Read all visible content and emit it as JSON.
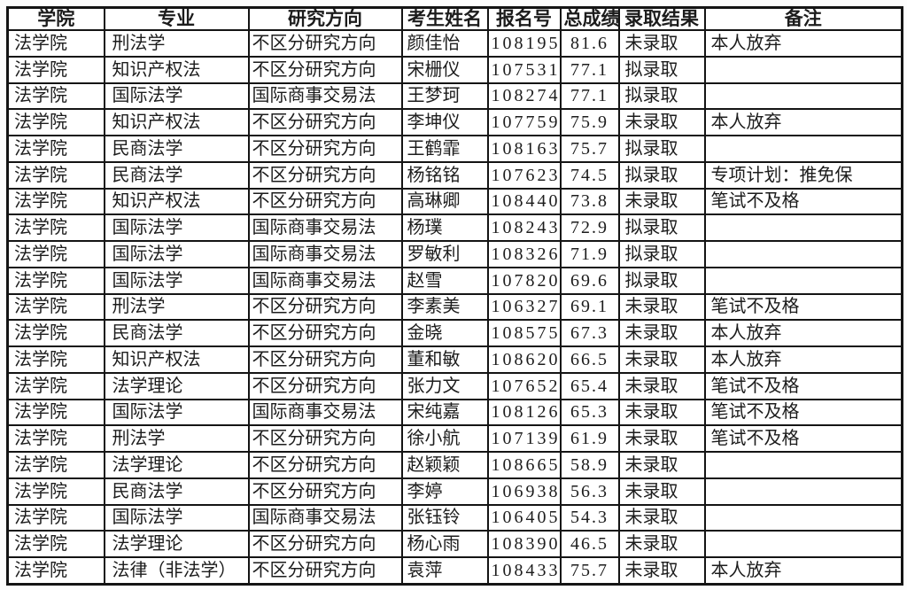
{
  "table": {
    "columns": [
      {
        "label": "学院"
      },
      {
        "label": "专业"
      },
      {
        "label": "研究方向"
      },
      {
        "label": "考生姓名"
      },
      {
        "label": "报名号"
      },
      {
        "label": "总成绩"
      },
      {
        "label": "录取结果"
      },
      {
        "label": "备注"
      }
    ],
    "rows": [
      [
        "法学院",
        "刑法学",
        "不区分研究方向",
        "颜佳怡",
        "108195",
        "81.6",
        "未录取",
        "本人放弃"
      ],
      [
        "法学院",
        "知识产权法",
        "不区分研究方向",
        "宋栅仪",
        "107531",
        "77.1",
        "拟录取",
        ""
      ],
      [
        "法学院",
        "国际法学",
        "国际商事交易法",
        "王梦珂",
        "108274",
        "77.1",
        "拟录取",
        ""
      ],
      [
        "法学院",
        "知识产权法",
        "不区分研究方向",
        "李坤仪",
        "107759",
        "75.9",
        "未录取",
        "本人放弃"
      ],
      [
        "法学院",
        "民商法学",
        "不区分研究方向",
        "王鹤霏",
        "108163",
        "75.7",
        "拟录取",
        ""
      ],
      [
        "法学院",
        "民商法学",
        "不区分研究方向",
        "杨铭铭",
        "107623",
        "74.5",
        "拟录取",
        "专项计划：推免保"
      ],
      [
        "法学院",
        "知识产权法",
        "不区分研究方向",
        "高琳卿",
        "108440",
        "73.8",
        "未录取",
        "笔试不及格"
      ],
      [
        "法学院",
        "国际法学",
        "国际商事交易法",
        "杨璞",
        "108243",
        "72.9",
        "拟录取",
        ""
      ],
      [
        "法学院",
        "国际法学",
        "国际商事交易法",
        "罗敏利",
        "108326",
        "71.9",
        "拟录取",
        ""
      ],
      [
        "法学院",
        "国际法学",
        "国际商事交易法",
        "赵雪",
        "107820",
        "69.6",
        "拟录取",
        ""
      ],
      [
        "法学院",
        "刑法学",
        "不区分研究方向",
        "李素美",
        "106327",
        "69.1",
        "未录取",
        "笔试不及格"
      ],
      [
        "法学院",
        "民商法学",
        "不区分研究方向",
        "金晓",
        "108575",
        "67.3",
        "未录取",
        "本人放弃"
      ],
      [
        "法学院",
        "知识产权法",
        "不区分研究方向",
        "董和敏",
        "108620",
        "66.5",
        "未录取",
        "本人放弃"
      ],
      [
        "法学院",
        "法学理论",
        "不区分研究方向",
        "张力文",
        "107652",
        "65.4",
        "未录取",
        "笔试不及格"
      ],
      [
        "法学院",
        "国际法学",
        "国际商事交易法",
        "宋纯嘉",
        "108126",
        "65.3",
        "未录取",
        "笔试不及格"
      ],
      [
        "法学院",
        "刑法学",
        "不区分研究方向",
        "徐小航",
        "107139",
        "61.9",
        "未录取",
        "笔试不及格"
      ],
      [
        "法学院",
        "法学理论",
        "不区分研究方向",
        "赵颖颖",
        "108665",
        "58.9",
        "未录取",
        ""
      ],
      [
        "法学院",
        "民商法学",
        "不区分研究方向",
        "李婷",
        "106938",
        "56.3",
        "未录取",
        ""
      ],
      [
        "法学院",
        "国际法学",
        "国际商事交易法",
        "张钰铃",
        "106405",
        "54.3",
        "未录取",
        ""
      ],
      [
        "法学院",
        "法学理论",
        "不区分研究方向",
        "杨心雨",
        "108390",
        "46.5",
        "未录取",
        ""
      ],
      [
        "法学院",
        "法律（非法学）",
        "不区分研究方向",
        "袁萍",
        "108433",
        "75.7",
        "未录取",
        "本人放弃"
      ]
    ]
  },
  "colors": {
    "border": "#141414",
    "text": "#1c1c1c",
    "background": "#ffffff"
  }
}
